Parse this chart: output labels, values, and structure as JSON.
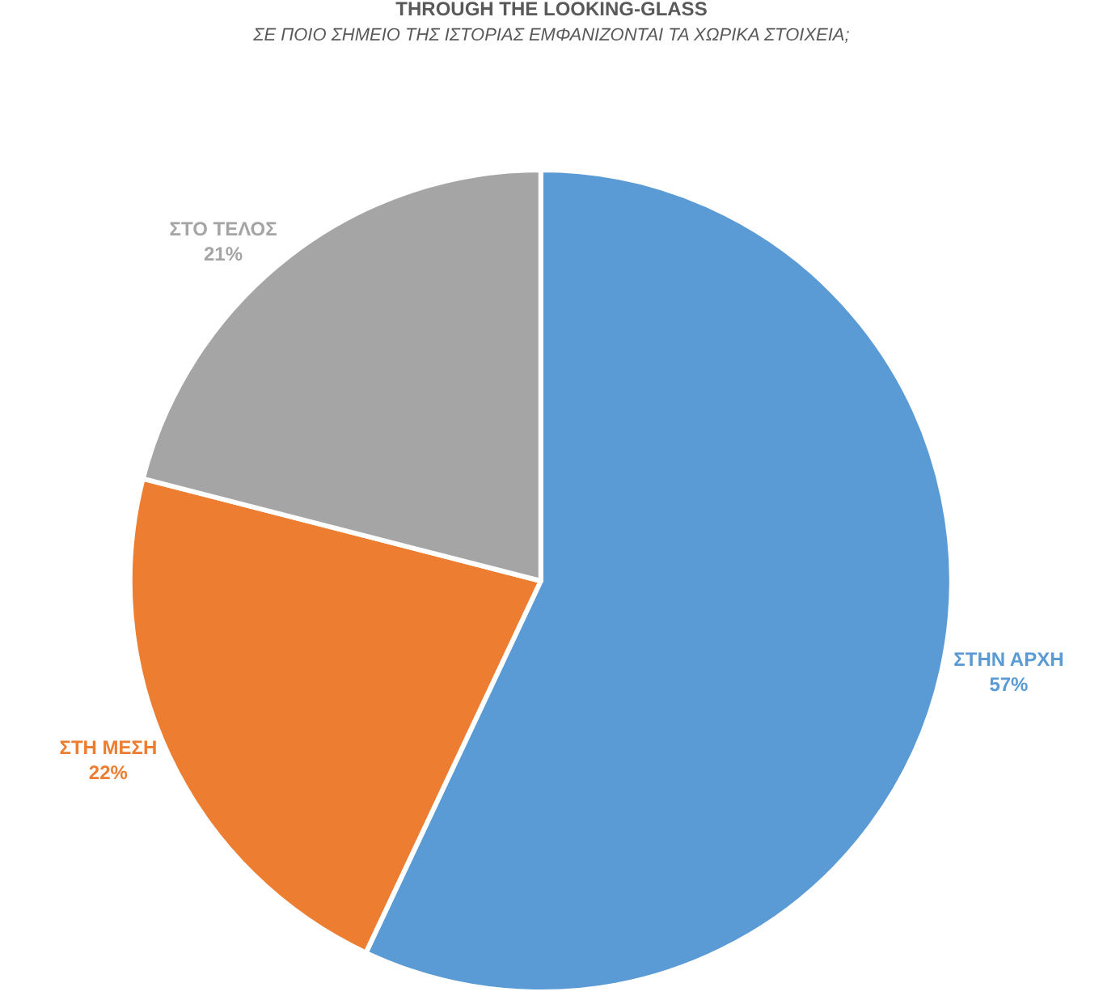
{
  "chart_data": {
    "type": "pie",
    "title": "THROUGH THE LOOKING-GLASS",
    "subtitle": "ΣΕ ΠΟΙΟ ΣΗΜΕΙΟ ΤΗΣ ΙΣΤΟΡΙΑΣ ΕΜΦΑΝΙΖΟΝΤΑΙ ΤΑ ΧΩΡΙΚΑ ΣΤΟΙΧΕΙΑ;",
    "categories": [
      "ΣΤΗΝ ΑΡΧΗ",
      "ΣΤΗ ΜΕΣΗ",
      "ΣΤΟ ΤΕΛΟΣ"
    ],
    "values": [
      57,
      22,
      21
    ],
    "value_labels": [
      "57%",
      "22%",
      "21%"
    ],
    "colors": [
      "#5b9bd5",
      "#ed7d31",
      "#a5a5a5"
    ],
    "legend": false
  }
}
